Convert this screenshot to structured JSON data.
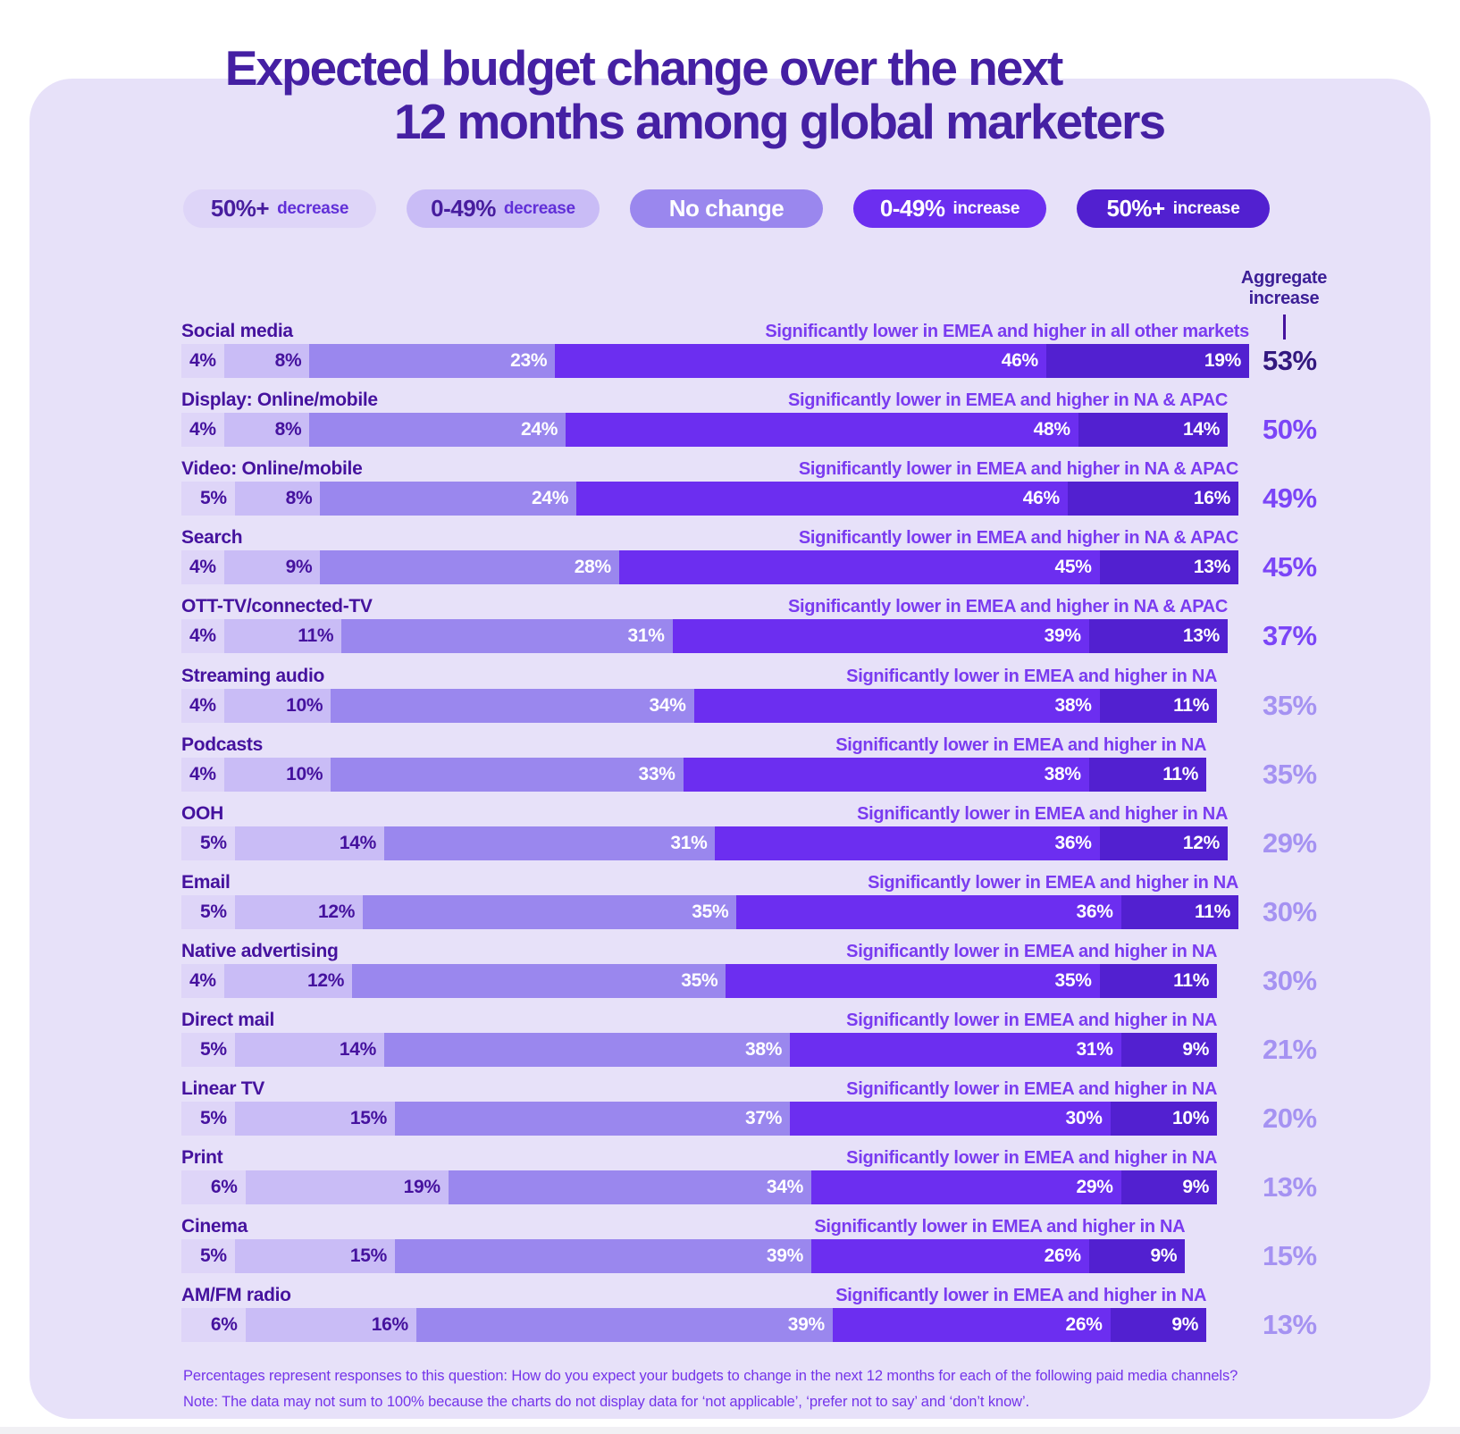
{
  "title": {
    "line1": "Expected budget change over the next",
    "line2": "12 months among global marketers"
  },
  "legend": {
    "items": [
      {
        "value": "50%+",
        "label": "decrease",
        "bg": "#ded5f8",
        "fg": "dark"
      },
      {
        "value": "0-49%",
        "label": "decrease",
        "bg": "#c9bcf6",
        "fg": "dark"
      },
      {
        "value": "No change",
        "label": "",
        "bg": "#9a87ee",
        "fg": "white"
      },
      {
        "value": "0-49%",
        "label": "increase",
        "bg": "#6c2ef0",
        "fg": "white"
      },
      {
        "value": "50%+",
        "label": "increase",
        "bg": "#5220d0",
        "fg": "white"
      }
    ]
  },
  "aggregate_header": "Aggregate increase",
  "chart_data": {
    "type": "bar",
    "orientation": "horizontal-stacked",
    "unit": "%",
    "title": "Expected budget change over the next 12 months among global marketers",
    "series_labels": [
      "50%+ decrease",
      "0-49% decrease",
      "No change",
      "0-49% increase",
      "50%+ increase"
    ],
    "segment_colors": [
      "#ded5f8",
      "#c9bcf6",
      "#9a87ee",
      "#6c2ef0",
      "#5220d0"
    ],
    "segment_label_colors": [
      "dark",
      "dark",
      "light",
      "light",
      "light"
    ],
    "aggregate_tier_colors": {
      "dark": "#33187f",
      "vivid": "#7b45f7",
      "light": "#a592f2"
    },
    "rows": [
      {
        "category": "Social media",
        "annotation": "Significantly lower in EMEA and higher in all other markets",
        "values": [
          4,
          8,
          23,
          46,
          19
        ],
        "aggregate": "53%",
        "aggregate_tier": "dark"
      },
      {
        "category": "Display: Online/mobile",
        "annotation": "Significantly lower in EMEA and higher in NA & APAC",
        "values": [
          4,
          8,
          24,
          48,
          14
        ],
        "aggregate": "50%",
        "aggregate_tier": "vivid"
      },
      {
        "category": "Video: Online/mobile",
        "annotation": "Significantly lower in EMEA and higher in NA & APAC",
        "values": [
          5,
          8,
          24,
          46,
          16
        ],
        "aggregate": "49%",
        "aggregate_tier": "vivid"
      },
      {
        "category": "Search",
        "annotation": "Significantly lower in EMEA and higher in NA & APAC",
        "values": [
          4,
          9,
          28,
          45,
          13
        ],
        "aggregate": "45%",
        "aggregate_tier": "vivid"
      },
      {
        "category": "OTT-TV/connected-TV",
        "annotation": "Significantly lower in EMEA and higher in NA & APAC",
        "values": [
          4,
          11,
          31,
          39,
          13
        ],
        "aggregate": "37%",
        "aggregate_tier": "vivid"
      },
      {
        "category": "Streaming audio",
        "annotation": "Significantly lower in EMEA and higher in NA",
        "values": [
          4,
          10,
          34,
          38,
          11
        ],
        "aggregate": "35%",
        "aggregate_tier": "light"
      },
      {
        "category": "Podcasts",
        "annotation": "Significantly lower in EMEA and higher in NA",
        "values": [
          4,
          10,
          33,
          38,
          11
        ],
        "aggregate": "35%",
        "aggregate_tier": "light"
      },
      {
        "category": "OOH",
        "annotation": "Significantly lower in EMEA and higher in NA",
        "values": [
          5,
          14,
          31,
          36,
          12
        ],
        "aggregate": "29%",
        "aggregate_tier": "light"
      },
      {
        "category": "Email",
        "annotation": "Significantly lower in EMEA and higher in NA",
        "values": [
          5,
          12,
          35,
          36,
          11
        ],
        "aggregate": "30%",
        "aggregate_tier": "light"
      },
      {
        "category": "Native advertising",
        "annotation": "Significantly lower in EMEA and higher in NA",
        "values": [
          4,
          12,
          35,
          35,
          11
        ],
        "aggregate": "30%",
        "aggregate_tier": "light"
      },
      {
        "category": "Direct mail",
        "annotation": "Significantly lower in EMEA and higher in NA",
        "values": [
          5,
          14,
          38,
          31,
          9
        ],
        "aggregate": "21%",
        "aggregate_tier": "light"
      },
      {
        "category": "Linear TV",
        "annotation": "Significantly lower in EMEA and higher in NA",
        "values": [
          5,
          15,
          37,
          30,
          10
        ],
        "aggregate": "20%",
        "aggregate_tier": "light"
      },
      {
        "category": "Print",
        "annotation": "Significantly lower in EMEA and higher in NA",
        "values": [
          6,
          19,
          34,
          29,
          9
        ],
        "aggregate": "13%",
        "aggregate_tier": "light"
      },
      {
        "category": "Cinema",
        "annotation": "Significantly lower in EMEA and higher in NA",
        "values": [
          5,
          15,
          39,
          26,
          9
        ],
        "aggregate": "15%",
        "aggregate_tier": "light"
      },
      {
        "category": "AM/FM radio",
        "annotation": "Significantly lower in EMEA and higher in NA",
        "values": [
          6,
          16,
          39,
          26,
          9
        ],
        "aggregate": "13%",
        "aggregate_tier": "light"
      }
    ]
  },
  "footer": {
    "line1": "Percentages represent responses to this question: How do you expect your budgets to change in the next 12 months for each of the following paid media channels?",
    "line2": "Note: The data may not sum to 100% because the charts do not display data for ‘not applicable’, ‘prefer not to say’ and ‘don’t know’."
  },
  "colors": {
    "card_bg": "#e7e1f9",
    "title_text": "#4520a3",
    "category_text": "#45129e",
    "annotation_text": "#7a3bf0",
    "footer_text": "#7434ea"
  }
}
